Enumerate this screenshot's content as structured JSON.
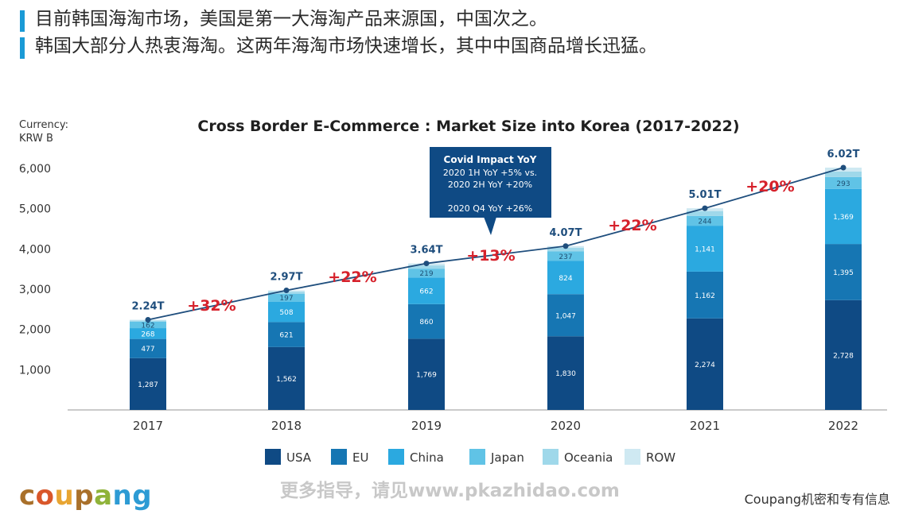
{
  "headline": {
    "line1": "目前韩国海淘市场，美国是第一大海淘产品来源国，中国次之。",
    "line2": "韩国大部分人热衷海淘。这两年海淘市场快速增长，其中中国商品增长迅猛。"
  },
  "chart_data": {
    "type": "bar",
    "stacked": true,
    "title": "Cross Border E-Commerce : Market Size into Korea (2017-2022)",
    "currency_label": [
      "Currency:",
      "KRW B"
    ],
    "categories": [
      "2017",
      "2018",
      "2019",
      "2020",
      "2021",
      "2022"
    ],
    "ylim": [
      0,
      6000
    ],
    "yticks": [
      1000,
      2000,
      3000,
      4000,
      5000,
      6000
    ],
    "ytick_labels": [
      "1,000",
      "2,000",
      "3,000",
      "4,000",
      "5,000",
      "6,000"
    ],
    "series": [
      {
        "name": "USA",
        "color": "#0f4a84",
        "values": [
          1287,
          1562,
          1769,
          1830,
          2274,
          2728
        ],
        "labels": [
          "1,287",
          "1,562",
          "1,769",
          "1,830",
          "2,274",
          "2,728"
        ]
      },
      {
        "name": "EU",
        "color": "#1676b3",
        "values": [
          477,
          621,
          860,
          1047,
          1162,
          1395
        ],
        "labels": [
          "477",
          "621",
          "860",
          "1,047",
          "1,162",
          "1,395"
        ]
      },
      {
        "name": "China",
        "color": "#2ba9e0",
        "values": [
          268,
          508,
          662,
          824,
          1141,
          1369
        ],
        "labels": [
          "268",
          "508",
          "662",
          "824",
          "1,141",
          "1,369"
        ]
      },
      {
        "name": "Japan",
        "color": "#60c3e6",
        "values": [
          162,
          197,
          219,
          237,
          244,
          293
        ],
        "labels": [
          "162",
          "197",
          "219",
          "237",
          "244",
          "293"
        ]
      },
      {
        "name": "Oceania",
        "color": "#9fd8ea",
        "values": [
          30,
          50,
          80,
          90,
          120,
          140
        ],
        "labels": [
          "",
          "",
          "",
          "",
          "",
          ""
        ]
      },
      {
        "name": "ROW",
        "color": "#cfe9f2",
        "values": [
          16,
          32,
          50,
          42,
          69,
          95
        ],
        "labels": [
          "",
          "",
          "",
          "",
          "",
          ""
        ]
      }
    ],
    "totals": {
      "values": [
        2240,
        2970,
        3640,
        4070,
        5010,
        6020
      ],
      "labels": [
        "2.24T",
        "2.97T",
        "3.64T",
        "4.07T",
        "5.01T",
        "6.02T"
      ]
    },
    "growth_labels": [
      "+32%",
      "+22%",
      "+13%",
      "+22%",
      "+20%"
    ],
    "callout": {
      "title": "Covid Impact YoY",
      "line1": "2020 1H YoY +5% vs.",
      "line2": "2020 2H YoY +20%",
      "line3": "2020 Q4 YoY +26%"
    },
    "legend": "bottom-center",
    "grid": false
  },
  "footer": {
    "brand": [
      "c",
      "o",
      "u",
      "p",
      "a",
      "n",
      "g"
    ],
    "watermark": "更多指导，请见www.pkazhidao.com",
    "confidential": "Coupang机密和专有信息"
  }
}
